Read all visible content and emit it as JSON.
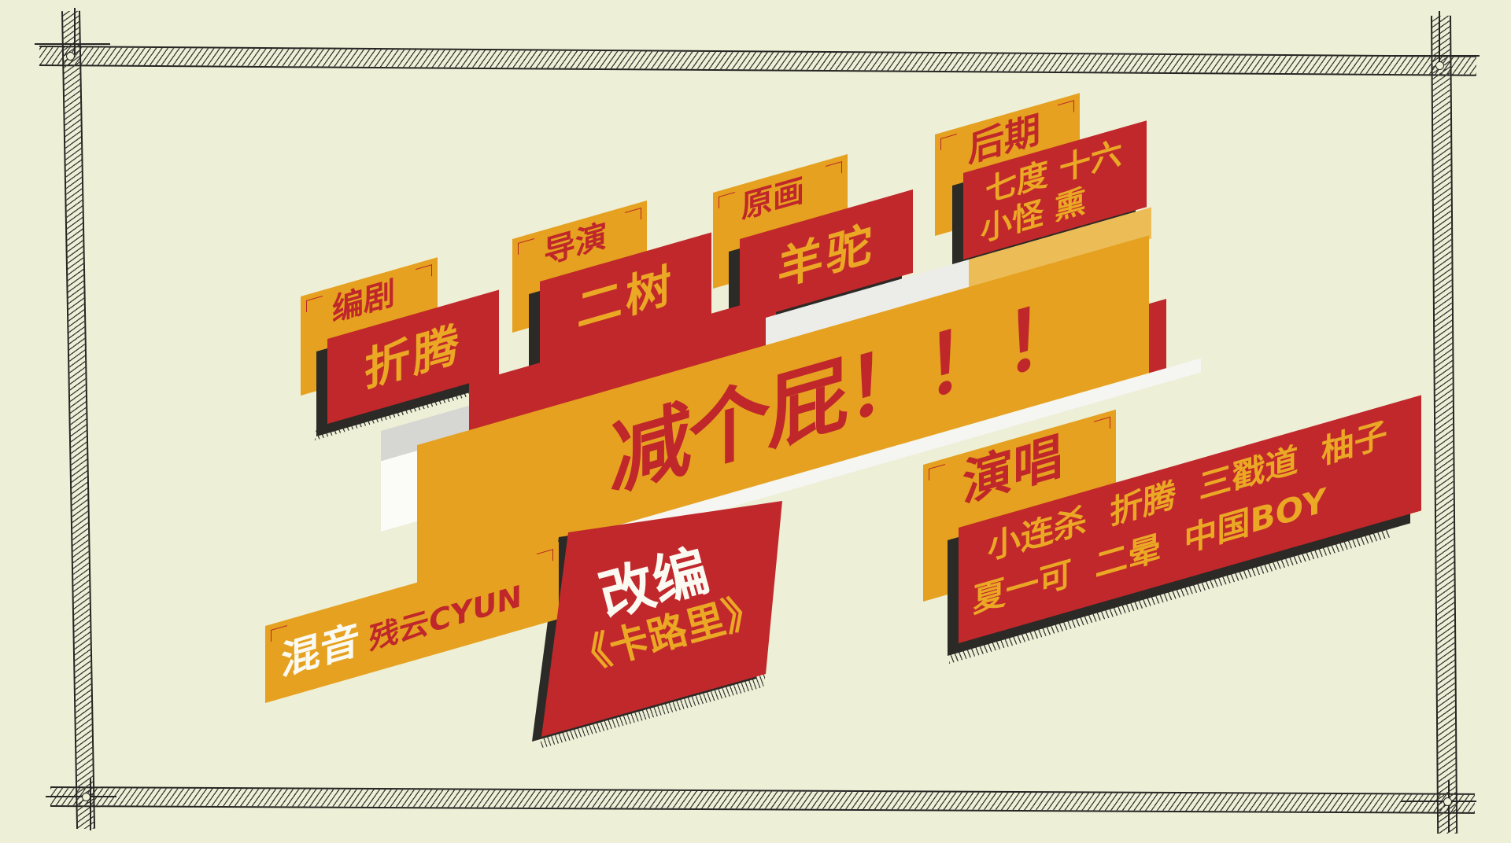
{
  "banner": {
    "title": "减个屁！！！"
  },
  "credits": {
    "screenwriter": {
      "role": "编剧",
      "name": "折腾"
    },
    "director": {
      "role": "导演",
      "name": "二树"
    },
    "key_animation": {
      "role": "原画",
      "name": "羊驼"
    },
    "post_production": {
      "role": "后期",
      "names": [
        "七度 十六",
        "小怪 熏"
      ]
    },
    "mixing": {
      "role": "混音",
      "name": "残云CYUN"
    },
    "adaptation": {
      "role": "改编",
      "work": "《卡路里》"
    },
    "vocals": {
      "role": "演唱",
      "names": [
        "小连杀  折腾  三戳道  柚子",
        "夏一可  二晕  中国BOY"
      ]
    }
  },
  "colors": {
    "background": "#eeefd7",
    "orange": "#e5a11f",
    "red": "#c1282b",
    "shadow": "#2b2a26",
    "white": "#f5f5f1",
    "frame_ink": "#262624"
  }
}
